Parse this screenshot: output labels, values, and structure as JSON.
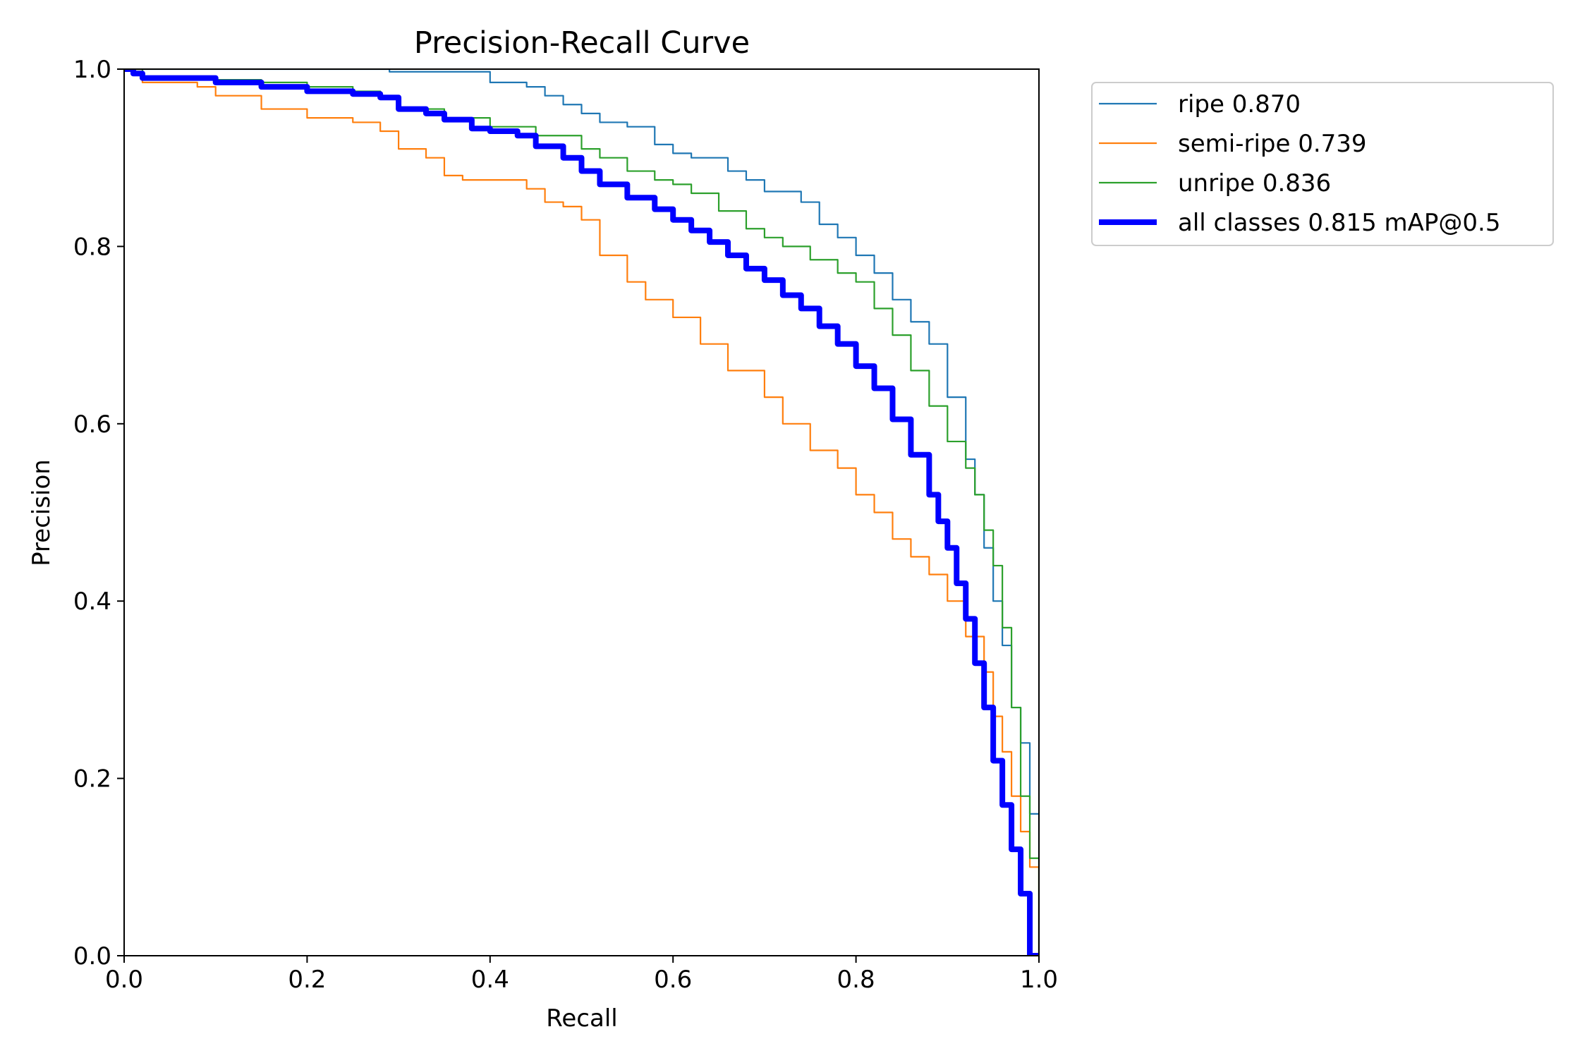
{
  "chart_data": {
    "type": "line",
    "title": "Precision-Recall Curve",
    "xlabel": "Recall",
    "ylabel": "Precision",
    "xlim": [
      0,
      1
    ],
    "ylim": [
      0,
      1
    ],
    "xticks": [
      "0.0",
      "0.2",
      "0.4",
      "0.6",
      "0.8",
      "1.0"
    ],
    "yticks": [
      "0.0",
      "0.2",
      "0.4",
      "0.6",
      "0.8",
      "1.0"
    ],
    "grid": false,
    "legend_position": "outside-upper-right",
    "series": [
      {
        "name": "ripe 0.870",
        "color": "#1f77b4",
        "width": "thin",
        "x": [
          0.0,
          0.02,
          0.05,
          0.1,
          0.2,
          0.28,
          0.29,
          0.39,
          0.4,
          0.44,
          0.46,
          0.48,
          0.5,
          0.52,
          0.55,
          0.58,
          0.6,
          0.62,
          0.66,
          0.68,
          0.7,
          0.74,
          0.76,
          0.78,
          0.8,
          0.82,
          0.84,
          0.86,
          0.88,
          0.9,
          0.92,
          0.93,
          0.94,
          0.95,
          0.96,
          0.97,
          0.98,
          0.99,
          1.0
        ],
        "y": [
          1.0,
          1.0,
          1.0,
          1.0,
          1.0,
          1.0,
          0.997,
          0.997,
          0.985,
          0.98,
          0.97,
          0.96,
          0.95,
          0.94,
          0.935,
          0.915,
          0.905,
          0.9,
          0.885,
          0.875,
          0.862,
          0.85,
          0.825,
          0.81,
          0.79,
          0.77,
          0.74,
          0.715,
          0.69,
          0.63,
          0.56,
          0.52,
          0.46,
          0.4,
          0.35,
          0.28,
          0.24,
          0.16,
          0.0
        ]
      },
      {
        "name": "semi-ripe 0.739",
        "color": "#ff7f0e",
        "width": "thin",
        "x": [
          0.0,
          0.02,
          0.05,
          0.08,
          0.1,
          0.15,
          0.2,
          0.25,
          0.28,
          0.3,
          0.33,
          0.35,
          0.37,
          0.4,
          0.44,
          0.46,
          0.48,
          0.5,
          0.52,
          0.55,
          0.57,
          0.6,
          0.63,
          0.66,
          0.7,
          0.72,
          0.75,
          0.78,
          0.8,
          0.82,
          0.84,
          0.86,
          0.88,
          0.9,
          0.92,
          0.94,
          0.95,
          0.96,
          0.97,
          0.98,
          0.99,
          1.0
        ],
        "y": [
          1.0,
          0.985,
          0.985,
          0.98,
          0.97,
          0.955,
          0.945,
          0.94,
          0.93,
          0.91,
          0.9,
          0.88,
          0.875,
          0.875,
          0.865,
          0.85,
          0.845,
          0.83,
          0.79,
          0.76,
          0.74,
          0.72,
          0.69,
          0.66,
          0.63,
          0.6,
          0.57,
          0.55,
          0.52,
          0.5,
          0.47,
          0.45,
          0.43,
          0.4,
          0.36,
          0.32,
          0.27,
          0.23,
          0.18,
          0.14,
          0.1,
          0.0
        ]
      },
      {
        "name": "unripe 0.836",
        "color": "#2ca02c",
        "width": "thin",
        "x": [
          0.0,
          0.02,
          0.05,
          0.1,
          0.15,
          0.2,
          0.25,
          0.28,
          0.3,
          0.35,
          0.4,
          0.45,
          0.5,
          0.52,
          0.55,
          0.58,
          0.6,
          0.62,
          0.65,
          0.68,
          0.7,
          0.72,
          0.75,
          0.78,
          0.8,
          0.82,
          0.84,
          0.86,
          0.88,
          0.9,
          0.92,
          0.93,
          0.94,
          0.95,
          0.96,
          0.97,
          0.98,
          0.99,
          1.0
        ],
        "y": [
          1.0,
          0.99,
          0.99,
          0.988,
          0.985,
          0.98,
          0.975,
          0.97,
          0.955,
          0.945,
          0.935,
          0.925,
          0.91,
          0.9,
          0.885,
          0.875,
          0.87,
          0.86,
          0.84,
          0.82,
          0.81,
          0.8,
          0.785,
          0.77,
          0.76,
          0.73,
          0.7,
          0.66,
          0.62,
          0.58,
          0.55,
          0.52,
          0.48,
          0.44,
          0.37,
          0.28,
          0.18,
          0.11,
          0.0
        ]
      },
      {
        "name": "all classes 0.815 mAP@0.5",
        "color": "#0000ff",
        "width": "thick",
        "x": [
          0.0,
          0.01,
          0.02,
          0.05,
          0.1,
          0.15,
          0.2,
          0.25,
          0.28,
          0.3,
          0.33,
          0.35,
          0.38,
          0.4,
          0.43,
          0.45,
          0.48,
          0.5,
          0.52,
          0.55,
          0.58,
          0.6,
          0.62,
          0.64,
          0.66,
          0.68,
          0.7,
          0.72,
          0.74,
          0.76,
          0.78,
          0.8,
          0.82,
          0.84,
          0.86,
          0.88,
          0.89,
          0.9,
          0.91,
          0.92,
          0.93,
          0.94,
          0.95,
          0.96,
          0.97,
          0.98,
          0.99,
          1.0
        ],
        "y": [
          1.0,
          0.995,
          0.99,
          0.99,
          0.985,
          0.98,
          0.975,
          0.972,
          0.968,
          0.955,
          0.95,
          0.943,
          0.933,
          0.93,
          0.925,
          0.913,
          0.9,
          0.885,
          0.87,
          0.855,
          0.842,
          0.83,
          0.818,
          0.805,
          0.79,
          0.775,
          0.762,
          0.745,
          0.73,
          0.71,
          0.69,
          0.665,
          0.64,
          0.605,
          0.565,
          0.52,
          0.49,
          0.46,
          0.42,
          0.38,
          0.33,
          0.28,
          0.22,
          0.17,
          0.12,
          0.07,
          0.0,
          0.0
        ]
      }
    ]
  }
}
